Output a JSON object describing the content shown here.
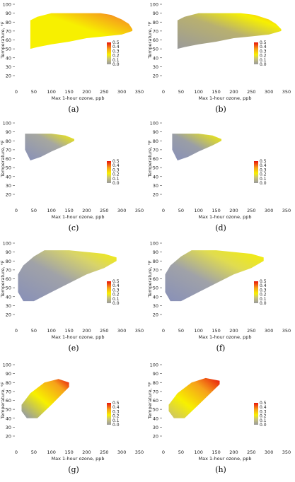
{
  "figure": {
    "x_axis_label": "Max 1-hour ozone, ppb",
    "y_axis_label": "Temperature, °F",
    "x_ticks": [
      "0",
      "50",
      "100",
      "150",
      "200",
      "250",
      "300",
      "350"
    ],
    "y_ticks": [
      "20",
      "30",
      "40",
      "50",
      "60",
      "70",
      "80",
      "90",
      "100"
    ],
    "legend_ticks": [
      "0.5",
      "0.4",
      "0.3",
      "0.2",
      "0.1",
      "0.0"
    ],
    "colors": {
      "low": "#8890b8",
      "mid_gray": "#9a9a9a",
      "yellow": "#f7f000",
      "orange": "#f6a21a",
      "red": "#e8140c"
    }
  },
  "chart_data": [
    {
      "panel": "(a)",
      "type": "heatmap",
      "xlim": [
        0,
        350
      ],
      "ylim": [
        15,
        100
      ],
      "region_top": [
        [
          40,
          82
        ],
        [
          60,
          86
        ],
        [
          100,
          90
        ],
        [
          180,
          90
        ],
        [
          210,
          90
        ],
        [
          240,
          90
        ],
        [
          270,
          88
        ],
        [
          300,
          83
        ],
        [
          320,
          78
        ],
        [
          330,
          72
        ]
      ],
      "region_bottom": [
        [
          40,
          50
        ],
        [
          60,
          52
        ],
        [
          100,
          55
        ],
        [
          150,
          58
        ],
        [
          200,
          62
        ],
        [
          250,
          64
        ],
        [
          300,
          66
        ],
        [
          330,
          70
        ]
      ],
      "shading": "mostly yellow, orange-red along top edge, gray at far right"
    },
    {
      "panel": "(b)",
      "type": "heatmap",
      "xlim": [
        0,
        350
      ],
      "ylim": [
        15,
        100
      ],
      "region_top": [
        [
          40,
          82
        ],
        [
          60,
          86
        ],
        [
          100,
          90
        ],
        [
          180,
          90
        ],
        [
          220,
          90
        ],
        [
          260,
          88
        ],
        [
          300,
          83
        ],
        [
          320,
          78
        ],
        [
          335,
          72
        ]
      ],
      "region_bottom": [
        [
          40,
          50
        ],
        [
          60,
          52
        ],
        [
          100,
          55
        ],
        [
          150,
          58
        ],
        [
          200,
          62
        ],
        [
          250,
          64
        ],
        [
          300,
          66
        ],
        [
          335,
          70
        ]
      ],
      "shading": "gray-blue center with yellow rim, orange near top-right"
    },
    {
      "panel": "(c)",
      "type": "heatmap",
      "xlim": [
        0,
        350
      ],
      "ylim": [
        15,
        100
      ],
      "region_top": [
        [
          25,
          88
        ],
        [
          60,
          88
        ],
        [
          100,
          88
        ],
        [
          140,
          86
        ],
        [
          165,
          82
        ]
      ],
      "region_bottom": [
        [
          25,
          70
        ],
        [
          40,
          58
        ],
        [
          70,
          62
        ],
        [
          100,
          68
        ],
        [
          140,
          75
        ],
        [
          165,
          80
        ]
      ],
      "shading": "blue-gray with yellow on right"
    },
    {
      "panel": "(d)",
      "type": "heatmap",
      "xlim": [
        0,
        350
      ],
      "ylim": [
        15,
        100
      ],
      "region_top": [
        [
          25,
          88
        ],
        [
          60,
          88
        ],
        [
          100,
          88
        ],
        [
          140,
          86
        ],
        [
          165,
          82
        ]
      ],
      "region_bottom": [
        [
          25,
          70
        ],
        [
          40,
          58
        ],
        [
          70,
          62
        ],
        [
          100,
          68
        ],
        [
          140,
          75
        ],
        [
          165,
          80
        ]
      ],
      "shading": "blue-gray center, yellow toward right"
    },
    {
      "panel": "(e)",
      "type": "heatmap",
      "xlim": [
        0,
        350
      ],
      "ylim": [
        15,
        100
      ],
      "region_top": [
        [
          5,
          65
        ],
        [
          20,
          75
        ],
        [
          50,
          85
        ],
        [
          80,
          92
        ],
        [
          150,
          92
        ],
        [
          200,
          90
        ],
        [
          250,
          88
        ],
        [
          285,
          84
        ]
      ],
      "region_bottom": [
        [
          5,
          45
        ],
        [
          20,
          35
        ],
        [
          50,
          35
        ],
        [
          100,
          45
        ],
        [
          150,
          55
        ],
        [
          200,
          65
        ],
        [
          250,
          72
        ],
        [
          285,
          80
        ]
      ],
      "shading": "blue-gray left, yellow right"
    },
    {
      "panel": "(f)",
      "type": "heatmap",
      "xlim": [
        0,
        350
      ],
      "ylim": [
        15,
        100
      ],
      "region_top": [
        [
          5,
          65
        ],
        [
          20,
          75
        ],
        [
          50,
          85
        ],
        [
          80,
          92
        ],
        [
          150,
          92
        ],
        [
          200,
          90
        ],
        [
          250,
          88
        ],
        [
          285,
          84
        ]
      ],
      "region_bottom": [
        [
          5,
          45
        ],
        [
          20,
          35
        ],
        [
          50,
          35
        ],
        [
          100,
          45
        ],
        [
          150,
          55
        ],
        [
          200,
          65
        ],
        [
          250,
          72
        ],
        [
          285,
          80
        ]
      ],
      "shading": "blue-gray left, yellow right"
    },
    {
      "panel": "(g)",
      "type": "heatmap",
      "xlim": [
        0,
        350
      ],
      "ylim": [
        15,
        100
      ],
      "region_top": [
        [
          15,
          55
        ],
        [
          40,
          68
        ],
        [
          80,
          80
        ],
        [
          120,
          84
        ],
        [
          150,
          80
        ]
      ],
      "region_bottom": [
        [
          15,
          48
        ],
        [
          30,
          40
        ],
        [
          60,
          40
        ],
        [
          100,
          55
        ],
        [
          150,
          75
        ]
      ],
      "shading": "blue-gray lower left, yellow center, red at upper right"
    },
    {
      "panel": "(h)",
      "type": "heatmap",
      "xlim": [
        0,
        350
      ],
      "ylim": [
        15,
        100
      ],
      "region_top": [
        [
          15,
          55
        ],
        [
          40,
          68
        ],
        [
          80,
          80
        ],
        [
          120,
          85
        ],
        [
          160,
          82
        ]
      ],
      "region_bottom": [
        [
          15,
          48
        ],
        [
          30,
          40
        ],
        [
          60,
          40
        ],
        [
          100,
          55
        ],
        [
          160,
          78
        ]
      ],
      "shading": "mostly yellow-orange, red at upper right"
    }
  ]
}
